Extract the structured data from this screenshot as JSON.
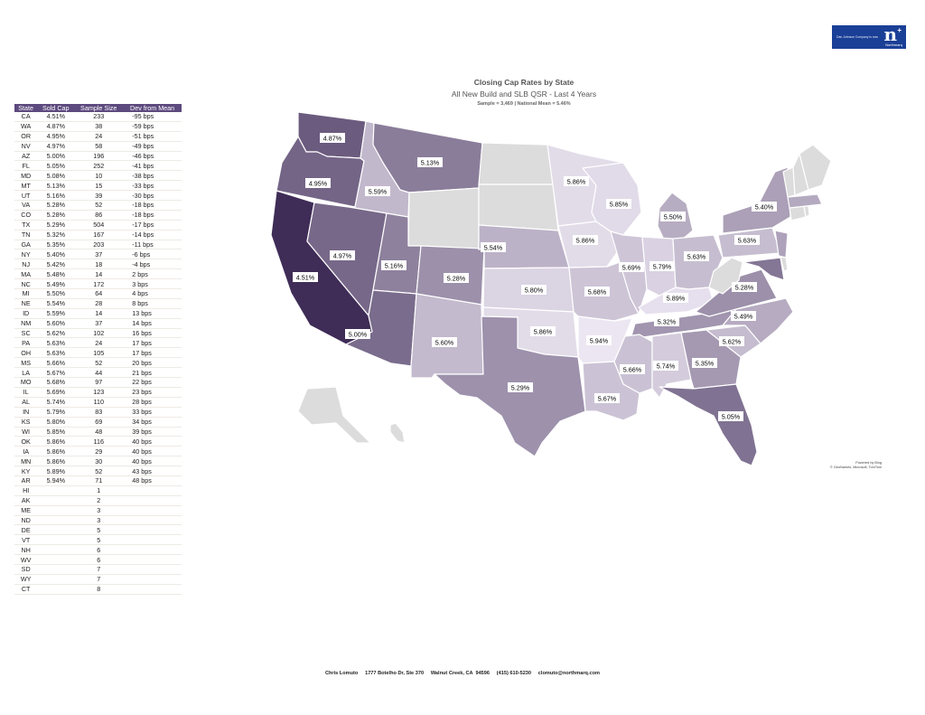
{
  "header": {
    "logo_tagline": "Dan Johnson Company is now",
    "logo_mark": "n",
    "logo_name": "Northmarq",
    "logo_color": "#1a3f96"
  },
  "title": "Closing Cap Rates by State",
  "subtitle": "All New Build and SLB QSR - Last 4 Years",
  "sample_line": "Sample = 3,469  |  National Mean = 5.46%",
  "table": {
    "columns": [
      "State",
      "Sold Cap",
      "Sample Size",
      "Dev from Mean"
    ],
    "rows": [
      [
        "CA",
        "4.51%",
        "233",
        "-95 bps"
      ],
      [
        "WA",
        "4.87%",
        "38",
        "-59 bps"
      ],
      [
        "OR",
        "4.95%",
        "24",
        "-51 bps"
      ],
      [
        "NV",
        "4.97%",
        "58",
        "-49 bps"
      ],
      [
        "AZ",
        "5.00%",
        "196",
        "-46 bps"
      ],
      [
        "FL",
        "5.05%",
        "252",
        "-41 bps"
      ],
      [
        "MD",
        "5.08%",
        "10",
        "-38 bps"
      ],
      [
        "MT",
        "5.13%",
        "15",
        "-33 bps"
      ],
      [
        "UT",
        "5.16%",
        "39",
        "-30 bps"
      ],
      [
        "VA",
        "5.28%",
        "52",
        "-18 bps"
      ],
      [
        "CO",
        "5.28%",
        "86",
        "-18 bps"
      ],
      [
        "TX",
        "5.29%",
        "504",
        "-17 bps"
      ],
      [
        "TN",
        "5.32%",
        "167",
        "-14 bps"
      ],
      [
        "GA",
        "5.35%",
        "203",
        "-11 bps"
      ],
      [
        "NY",
        "5.40%",
        "37",
        "-6 bps"
      ],
      [
        "NJ",
        "5.42%",
        "18",
        "-4 bps"
      ],
      [
        "MA",
        "5.48%",
        "14",
        "2 bps"
      ],
      [
        "NC",
        "5.49%",
        "172",
        "3 bps"
      ],
      [
        "MI",
        "5.50%",
        "64",
        "4 bps"
      ],
      [
        "NE",
        "5.54%",
        "28",
        "8 bps"
      ],
      [
        "ID",
        "5.59%",
        "14",
        "13 bps"
      ],
      [
        "NM",
        "5.60%",
        "37",
        "14 bps"
      ],
      [
        "SC",
        "5.62%",
        "102",
        "16 bps"
      ],
      [
        "PA",
        "5.63%",
        "24",
        "17 bps"
      ],
      [
        "OH",
        "5.63%",
        "105",
        "17 bps"
      ],
      [
        "MS",
        "5.66%",
        "52",
        "20 bps"
      ],
      [
        "LA",
        "5.67%",
        "44",
        "21 bps"
      ],
      [
        "MO",
        "5.68%",
        "97",
        "22 bps"
      ],
      [
        "IL",
        "5.69%",
        "123",
        "23 bps"
      ],
      [
        "AL",
        "5.74%",
        "110",
        "28 bps"
      ],
      [
        "IN",
        "5.79%",
        "83",
        "33 bps"
      ],
      [
        "KS",
        "5.80%",
        "69",
        "34 bps"
      ],
      [
        "WI",
        "5.85%",
        "48",
        "39 bps"
      ],
      [
        "OK",
        "5.86%",
        "116",
        "40 bps"
      ],
      [
        "IA",
        "5.86%",
        "29",
        "40 bps"
      ],
      [
        "MN",
        "5.86%",
        "30",
        "40 bps"
      ],
      [
        "KY",
        "5.89%",
        "52",
        "43 bps"
      ],
      [
        "AR",
        "5.94%",
        "71",
        "48 bps"
      ],
      [
        "HI",
        "",
        "1",
        ""
      ],
      [
        "AK",
        "",
        "2",
        ""
      ],
      [
        "ME",
        "",
        "3",
        ""
      ],
      [
        "ND",
        "",
        "3",
        ""
      ],
      [
        "DE",
        "",
        "5",
        ""
      ],
      [
        "VT",
        "",
        "5",
        ""
      ],
      [
        "NH",
        "",
        "6",
        ""
      ],
      [
        "WV",
        "",
        "6",
        ""
      ],
      [
        "SD",
        "",
        "7",
        ""
      ],
      [
        "WY",
        "",
        "7",
        ""
      ],
      [
        "CT",
        "",
        "8",
        ""
      ]
    ]
  },
  "map": {
    "color_scale": {
      "low": "#3f2c57",
      "high": "#ece6f2",
      "no_data": "#dcdcdc",
      "border": "#ffffff"
    },
    "state_caps": {
      "CA": "4.51%",
      "WA": "4.87%",
      "OR": "4.95%",
      "NV": "4.97%",
      "AZ": "5.00%",
      "FL": "5.05%",
      "MD": "5.08%",
      "MT": "5.13%",
      "UT": "5.16%",
      "VA": "5.28%",
      "CO": "5.28%",
      "TX": "5.29%",
      "TN": "5.32%",
      "GA": "5.35%",
      "NY": "5.40%",
      "NJ": "5.42%",
      "MA": "5.48%",
      "NC": "5.49%",
      "MI": "5.50%",
      "NE": "5.54%",
      "ID": "5.59%",
      "NM": "5.60%",
      "SC": "5.62%",
      "PA": "5.63%",
      "OH": "5.63%",
      "MS": "5.66%",
      "LA": "5.67%",
      "MO": "5.68%",
      "IL": "5.69%",
      "AL": "5.74%",
      "IN": "5.79%",
      "KS": "5.80%",
      "WI": "5.85%",
      "OK": "5.86%",
      "IA": "5.86%",
      "MN": "5.86%",
      "KY": "5.89%",
      "AR": "5.94%"
    },
    "no_data_states": [
      "HI",
      "AK",
      "ME",
      "ND",
      "DE",
      "VT",
      "NH",
      "WV",
      "SD",
      "WY",
      "CT",
      "RI"
    ]
  },
  "credit": {
    "line1": "Powered by Bing",
    "line2": "© GeoNames, Microsoft, TomTom"
  },
  "footer": "Chris Lomuto     1777 Botelho Dr, Ste 370     Walnut Creek, CA  94596     (415) 610-5230     clomuto@northmarq.com"
}
